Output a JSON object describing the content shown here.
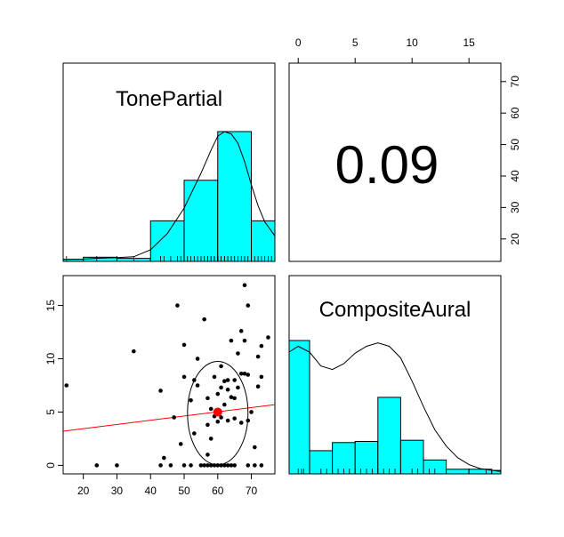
{
  "chart_data": {
    "type": "scatter-matrix",
    "variables": [
      "TonePartial",
      "CompositeAural"
    ],
    "correlation": "0.09",
    "tonepartial_axis": {
      "ticks": [
        "20",
        "30",
        "40",
        "50",
        "60",
        "70"
      ],
      "range": [
        14,
        77
      ]
    },
    "compositeaural_axis": {
      "ticks": [
        "0",
        "5",
        "10",
        "15"
      ],
      "range": [
        -0.8,
        17.8
      ]
    },
    "tonepartial_histogram": {
      "bins": [
        [
          14,
          20
        ],
        [
          20,
          30
        ],
        [
          30,
          40
        ],
        [
          40,
          50
        ],
        [
          50,
          60
        ],
        [
          60,
          70
        ],
        [
          70,
          77
        ]
      ],
      "heights": [
        0.9,
        1.8,
        1.3,
        17.5,
        35.0,
        56.0,
        17.5
      ],
      "density_curve": [
        [
          14,
          0.9
        ],
        [
          20,
          1.0
        ],
        [
          25,
          1.4
        ],
        [
          30,
          1.6
        ],
        [
          35,
          2.0
        ],
        [
          40,
          5.0
        ],
        [
          45,
          12.0
        ],
        [
          50,
          23.0
        ],
        [
          55,
          38.0
        ],
        [
          58,
          48.0
        ],
        [
          60,
          54.0
        ],
        [
          62,
          56.0
        ],
        [
          64,
          55.0
        ],
        [
          66,
          51.0
        ],
        [
          68,
          43.0
        ],
        [
          70,
          33.0
        ],
        [
          72,
          24.0
        ],
        [
          74,
          17.0
        ],
        [
          77,
          11.0
        ]
      ],
      "rug": [
        15,
        24,
        30,
        35,
        43,
        44,
        46,
        48,
        49,
        50,
        51,
        52,
        53,
        54,
        55,
        55,
        56,
        56,
        57,
        57,
        58,
        58,
        59,
        59,
        60,
        60,
        60,
        61,
        61,
        62,
        62,
        63,
        63,
        64,
        64,
        65,
        65,
        66,
        67,
        68,
        69,
        70,
        71,
        72,
        73,
        74,
        75,
        76
      ]
    },
    "compositeaural_histogram": {
      "bins": [
        [
          -0.8,
          1
        ],
        [
          1,
          3
        ],
        [
          3,
          5
        ],
        [
          5,
          7
        ],
        [
          7,
          9
        ],
        [
          9,
          11
        ],
        [
          11,
          13
        ],
        [
          13,
          15
        ],
        [
          15,
          17
        ],
        [
          17,
          17.8
        ]
      ],
      "heights": [
        11.5,
        2.0,
        2.7,
        2.8,
        6.6,
        2.9,
        1.2,
        0.4,
        0.4,
        0.3
      ],
      "density_curve": [
        [
          -0.8,
          10.5
        ],
        [
          0,
          11.0
        ],
        [
          1,
          10.5
        ],
        [
          2,
          9.3
        ],
        [
          3,
          9.0
        ],
        [
          4,
          9.5
        ],
        [
          5,
          10.4
        ],
        [
          6,
          11.0
        ],
        [
          7,
          11.3
        ],
        [
          8,
          11.0
        ],
        [
          9,
          10.0
        ],
        [
          10,
          8.0
        ],
        [
          11,
          5.8
        ],
        [
          12,
          3.8
        ],
        [
          13,
          2.4
        ],
        [
          14,
          1.4
        ],
        [
          15,
          0.8
        ],
        [
          16,
          0.45
        ],
        [
          17.8,
          0.2
        ]
      ],
      "rug": [
        0,
        0.3,
        0.5,
        1,
        2,
        2.5,
        3,
        3.5,
        4,
        4.5,
        5,
        5.5,
        6,
        6.5,
        7,
        7.5,
        8,
        8.5,
        9,
        10,
        10.5,
        11,
        11.5,
        12,
        13,
        15,
        16.5
      ]
    },
    "scatter": {
      "points": [
        [
          15,
          7.5
        ],
        [
          24,
          0
        ],
        [
          30,
          0
        ],
        [
          35,
          10.7
        ],
        [
          43,
          0
        ],
        [
          43,
          7
        ],
        [
          44,
          0.7
        ],
        [
          46,
          0
        ],
        [
          47,
          4.5
        ],
        [
          48,
          15
        ],
        [
          49,
          2
        ],
        [
          50,
          0
        ],
        [
          50,
          8.3
        ],
        [
          50,
          11.3
        ],
        [
          52,
          0
        ],
        [
          52,
          6.1
        ],
        [
          53,
          3
        ],
        [
          53,
          8
        ],
        [
          54,
          7.5
        ],
        [
          54,
          10
        ],
        [
          55,
          0
        ],
        [
          56,
          0
        ],
        [
          56,
          13.7
        ],
        [
          57,
          0
        ],
        [
          57,
          1
        ],
        [
          57,
          3.8
        ],
        [
          57,
          6.3
        ],
        [
          58,
          0
        ],
        [
          58,
          2.5
        ],
        [
          58,
          5.3
        ],
        [
          59,
          0
        ],
        [
          59,
          4.6
        ],
        [
          59,
          8.3
        ],
        [
          60,
          0
        ],
        [
          60,
          4.1
        ],
        [
          60,
          5
        ],
        [
          60,
          6.7
        ],
        [
          61,
          0
        ],
        [
          61,
          4.5
        ],
        [
          61,
          7.3
        ],
        [
          61,
          9.3
        ],
        [
          62,
          0
        ],
        [
          62,
          5.7
        ],
        [
          62,
          7.9
        ],
        [
          63,
          0
        ],
        [
          63,
          4.2
        ],
        [
          63,
          7.1
        ],
        [
          63,
          8
        ],
        [
          64,
          0
        ],
        [
          64,
          6.4
        ],
        [
          64,
          11.7
        ],
        [
          65,
          0
        ],
        [
          65,
          4.4
        ],
        [
          65,
          6.3
        ],
        [
          65,
          8
        ],
        [
          66,
          7.3
        ],
        [
          66,
          10.5
        ],
        [
          67,
          4
        ],
        [
          67,
          8.6
        ],
        [
          67,
          12.6
        ],
        [
          68,
          11.7
        ],
        [
          68,
          8.6
        ],
        [
          68,
          16.9
        ],
        [
          69,
          0
        ],
        [
          69,
          4.2
        ],
        [
          69,
          8.5
        ],
        [
          69,
          15
        ],
        [
          70,
          5
        ],
        [
          71,
          0
        ],
        [
          71,
          1.7
        ],
        [
          72,
          7.4
        ],
        [
          72,
          10.2
        ],
        [
          73,
          0
        ],
        [
          73,
          8.3
        ],
        [
          73,
          11.2
        ],
        [
          75,
          12
        ]
      ],
      "center": [
        60,
        5
      ],
      "ellipse": {
        "cx": 60,
        "cy": 4.9,
        "rx": 9.0,
        "ry": 4.85
      },
      "regression": {
        "from": [
          14,
          3.2
        ],
        "to": [
          77,
          5.7
        ]
      }
    }
  }
}
